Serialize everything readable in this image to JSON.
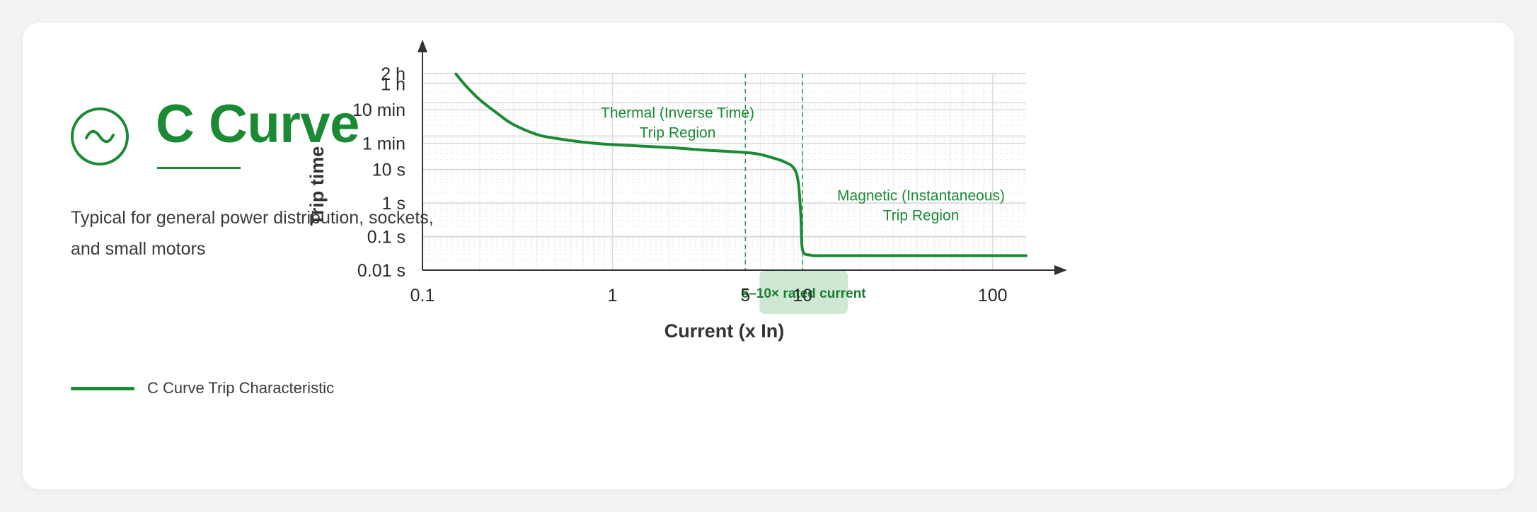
{
  "panel": {
    "title": "C Curve",
    "title_icon": "sine-wave-icon",
    "description": "Typical for general power distribution, sockets, and small motors",
    "legend_label": "C Curve Trip Characteristic"
  },
  "colors": {
    "accent": "#1a8a35",
    "band_fill": "#cfe8d3",
    "grid": "#e4e4e4",
    "axis": "#333333"
  },
  "chart_data": {
    "type": "line",
    "xlabel": "Current (x In)",
    "ylabel": "Trip time",
    "xscale": "log",
    "yscale": "log",
    "xlim": [
      0.1,
      150
    ],
    "ylim": [
      0.01,
      7200
    ],
    "x_ticks": [
      {
        "value": 0.1,
        "label": "0.1"
      },
      {
        "value": 1,
        "label": "1"
      },
      {
        "value": 5,
        "label": "5"
      },
      {
        "value": 10,
        "label": "10"
      },
      {
        "value": 100,
        "label": "100"
      }
    ],
    "y_ticks": [
      {
        "value": 0.01,
        "label": "0.01 s"
      },
      {
        "value": 0.1,
        "label": "0.1 s"
      },
      {
        "value": 1,
        "label": "1 s"
      },
      {
        "value": 10,
        "label": "10 s"
      },
      {
        "value": 60,
        "label": "1 min"
      },
      {
        "value": 600,
        "label": "10 min"
      },
      {
        "value": 3600,
        "label": "1 h"
      },
      {
        "value": 7200,
        "label": "2 h"
      }
    ],
    "grid": true,
    "series": [
      {
        "name": "C Curve Trip Characteristic",
        "x": [
          0.15,
          0.17,
          0.2,
          0.25,
          0.3,
          0.4,
          0.5,
          0.7,
          1,
          2,
          3,
          5,
          6,
          7,
          8,
          9,
          9.5,
          9.8,
          10,
          11,
          12,
          15,
          20,
          50,
          100,
          150
        ],
        "y": [
          7000,
          3000,
          1200,
          450,
          220,
          110,
          85,
          65,
          55,
          45,
          38,
          32,
          28,
          22,
          17,
          11,
          4,
          0.4,
          0.04,
          0.028,
          0.027,
          0.027,
          0.027,
          0.027,
          0.027,
          0.027
        ]
      }
    ],
    "markers": [
      {
        "x": 5
      },
      {
        "x": 10
      }
    ],
    "annotations": [
      {
        "lines": [
          "Thermal (Inverse Time)",
          "Trip Region"
        ],
        "x": 2.2,
        "y": 350
      },
      {
        "lines": [
          "Magnetic (Instantaneous)",
          "Trip Region"
        ],
        "x": 42,
        "y": 1.2
      }
    ],
    "band": {
      "label": "5–10× rated current",
      "x_from": 5,
      "x_to": 10
    }
  }
}
